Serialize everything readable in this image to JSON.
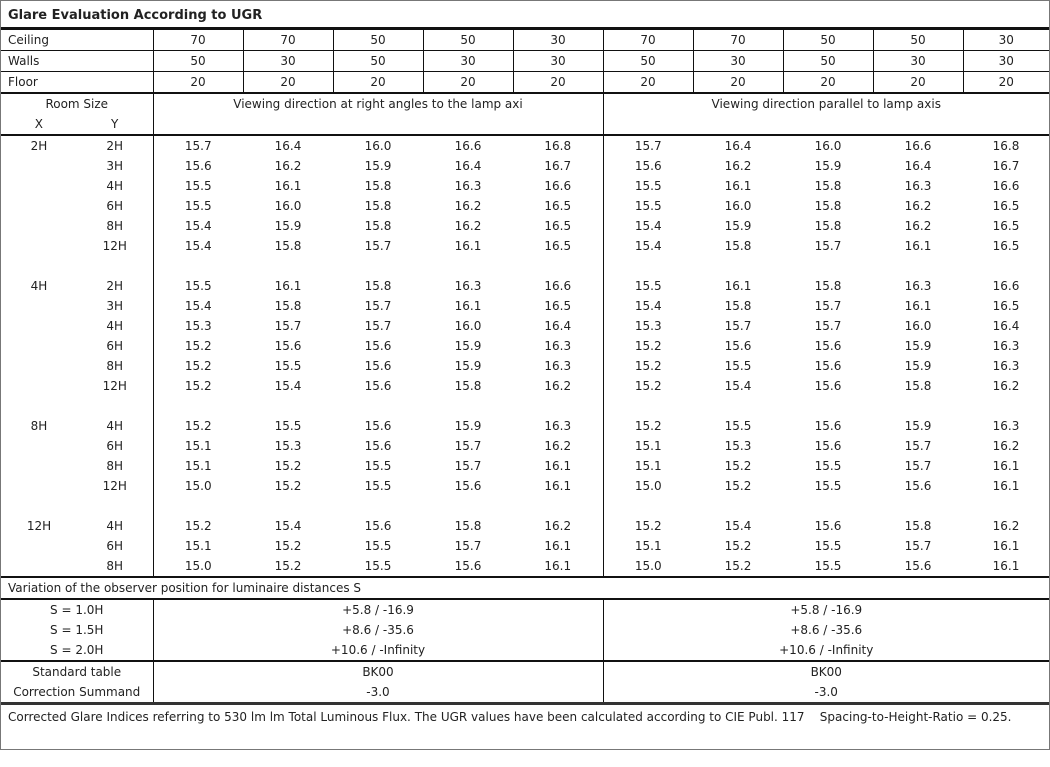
{
  "title": "Glare Evaluation According to UGR",
  "reflectances": [
    {
      "label": "Ceiling",
      "values": [
        "70",
        "70",
        "50",
        "50",
        "30",
        "70",
        "70",
        "50",
        "50",
        "30"
      ]
    },
    {
      "label": "Walls",
      "values": [
        "50",
        "30",
        "50",
        "30",
        "30",
        "50",
        "30",
        "50",
        "30",
        "30"
      ]
    },
    {
      "label": "Floor",
      "values": [
        "20",
        "20",
        "20",
        "20",
        "20",
        "20",
        "20",
        "20",
        "20",
        "20"
      ]
    }
  ],
  "header": {
    "room_size": "Room Size",
    "x": "X",
    "y": "Y",
    "dir_right_angles": "Viewing direction at right angles to the lamp axi",
    "dir_parallel": "Viewing direction parallel to lamp axis"
  },
  "groups": [
    {
      "x": "2H",
      "rows": [
        {
          "y": "2H",
          "v": [
            "15.7",
            "16.4",
            "16.0",
            "16.6",
            "16.8",
            "15.7",
            "16.4",
            "16.0",
            "16.6",
            "16.8"
          ]
        },
        {
          "y": "3H",
          "v": [
            "15.6",
            "16.2",
            "15.9",
            "16.4",
            "16.7",
            "15.6",
            "16.2",
            "15.9",
            "16.4",
            "16.7"
          ]
        },
        {
          "y": "4H",
          "v": [
            "15.5",
            "16.1",
            "15.8",
            "16.3",
            "16.6",
            "15.5",
            "16.1",
            "15.8",
            "16.3",
            "16.6"
          ]
        },
        {
          "y": "6H",
          "v": [
            "15.5",
            "16.0",
            "15.8",
            "16.2",
            "16.5",
            "15.5",
            "16.0",
            "15.8",
            "16.2",
            "16.5"
          ]
        },
        {
          "y": "8H",
          "v": [
            "15.4",
            "15.9",
            "15.8",
            "16.2",
            "16.5",
            "15.4",
            "15.9",
            "15.8",
            "16.2",
            "16.5"
          ]
        },
        {
          "y": "12H",
          "v": [
            "15.4",
            "15.8",
            "15.7",
            "16.1",
            "16.5",
            "15.4",
            "15.8",
            "15.7",
            "16.1",
            "16.5"
          ]
        }
      ]
    },
    {
      "x": "4H",
      "rows": [
        {
          "y": "2H",
          "v": [
            "15.5",
            "16.1",
            "15.8",
            "16.3",
            "16.6",
            "15.5",
            "16.1",
            "15.8",
            "16.3",
            "16.6"
          ]
        },
        {
          "y": "3H",
          "v": [
            "15.4",
            "15.8",
            "15.7",
            "16.1",
            "16.5",
            "15.4",
            "15.8",
            "15.7",
            "16.1",
            "16.5"
          ]
        },
        {
          "y": "4H",
          "v": [
            "15.3",
            "15.7",
            "15.7",
            "16.0",
            "16.4",
            "15.3",
            "15.7",
            "15.7",
            "16.0",
            "16.4"
          ]
        },
        {
          "y": "6H",
          "v": [
            "15.2",
            "15.6",
            "15.6",
            "15.9",
            "16.3",
            "15.2",
            "15.6",
            "15.6",
            "15.9",
            "16.3"
          ]
        },
        {
          "y": "8H",
          "v": [
            "15.2",
            "15.5",
            "15.6",
            "15.9",
            "16.3",
            "15.2",
            "15.5",
            "15.6",
            "15.9",
            "16.3"
          ]
        },
        {
          "y": "12H",
          "v": [
            "15.2",
            "15.4",
            "15.6",
            "15.8",
            "16.2",
            "15.2",
            "15.4",
            "15.6",
            "15.8",
            "16.2"
          ]
        }
      ]
    },
    {
      "x": "8H",
      "rows": [
        {
          "y": "4H",
          "v": [
            "15.2",
            "15.5",
            "15.6",
            "15.9",
            "16.3",
            "15.2",
            "15.5",
            "15.6",
            "15.9",
            "16.3"
          ]
        },
        {
          "y": "6H",
          "v": [
            "15.1",
            "15.3",
            "15.6",
            "15.7",
            "16.2",
            "15.1",
            "15.3",
            "15.6",
            "15.7",
            "16.2"
          ]
        },
        {
          "y": "8H",
          "v": [
            "15.1",
            "15.2",
            "15.5",
            "15.7",
            "16.1",
            "15.1",
            "15.2",
            "15.5",
            "15.7",
            "16.1"
          ]
        },
        {
          "y": "12H",
          "v": [
            "15.0",
            "15.2",
            "15.5",
            "15.6",
            "16.1",
            "15.0",
            "15.2",
            "15.5",
            "15.6",
            "16.1"
          ]
        }
      ]
    },
    {
      "x": "12H",
      "rows": [
        {
          "y": "4H",
          "v": [
            "15.2",
            "15.4",
            "15.6",
            "15.8",
            "16.2",
            "15.2",
            "15.4",
            "15.6",
            "15.8",
            "16.2"
          ]
        },
        {
          "y": "6H",
          "v": [
            "15.1",
            "15.2",
            "15.5",
            "15.7",
            "16.1",
            "15.1",
            "15.2",
            "15.5",
            "15.7",
            "16.1"
          ]
        },
        {
          "y": "8H",
          "v": [
            "15.0",
            "15.2",
            "15.5",
            "15.6",
            "16.1",
            "15.0",
            "15.2",
            "15.5",
            "15.6",
            "16.1"
          ]
        }
      ]
    }
  ],
  "variation": {
    "title": "Variation of the observer position for luminaire distances S",
    "rows": [
      {
        "label": "S = 1.0H",
        "left": "+5.8 / -16.9",
        "right": "+5.8 / -16.9"
      },
      {
        "label": "S = 1.5H",
        "left": "+8.6 / -35.6",
        "right": "+8.6 / -35.6"
      },
      {
        "label": "S = 2.0H",
        "left": "+10.6 / -Infinity",
        "right": "+10.6 / -Infinity"
      }
    ]
  },
  "standard": [
    {
      "label": "Standard table",
      "left": "BK00",
      "right": "BK00"
    },
    {
      "label": "Correction Summand",
      "left": "-3.0",
      "right": "-3.0"
    }
  ],
  "footer": "Corrected Glare Indices referring to 530 lm lm Total Luminous Flux. The UGR values have been calculated according to CIE Publ. 117    Spacing-to-Height-Ratio = 0.25."
}
